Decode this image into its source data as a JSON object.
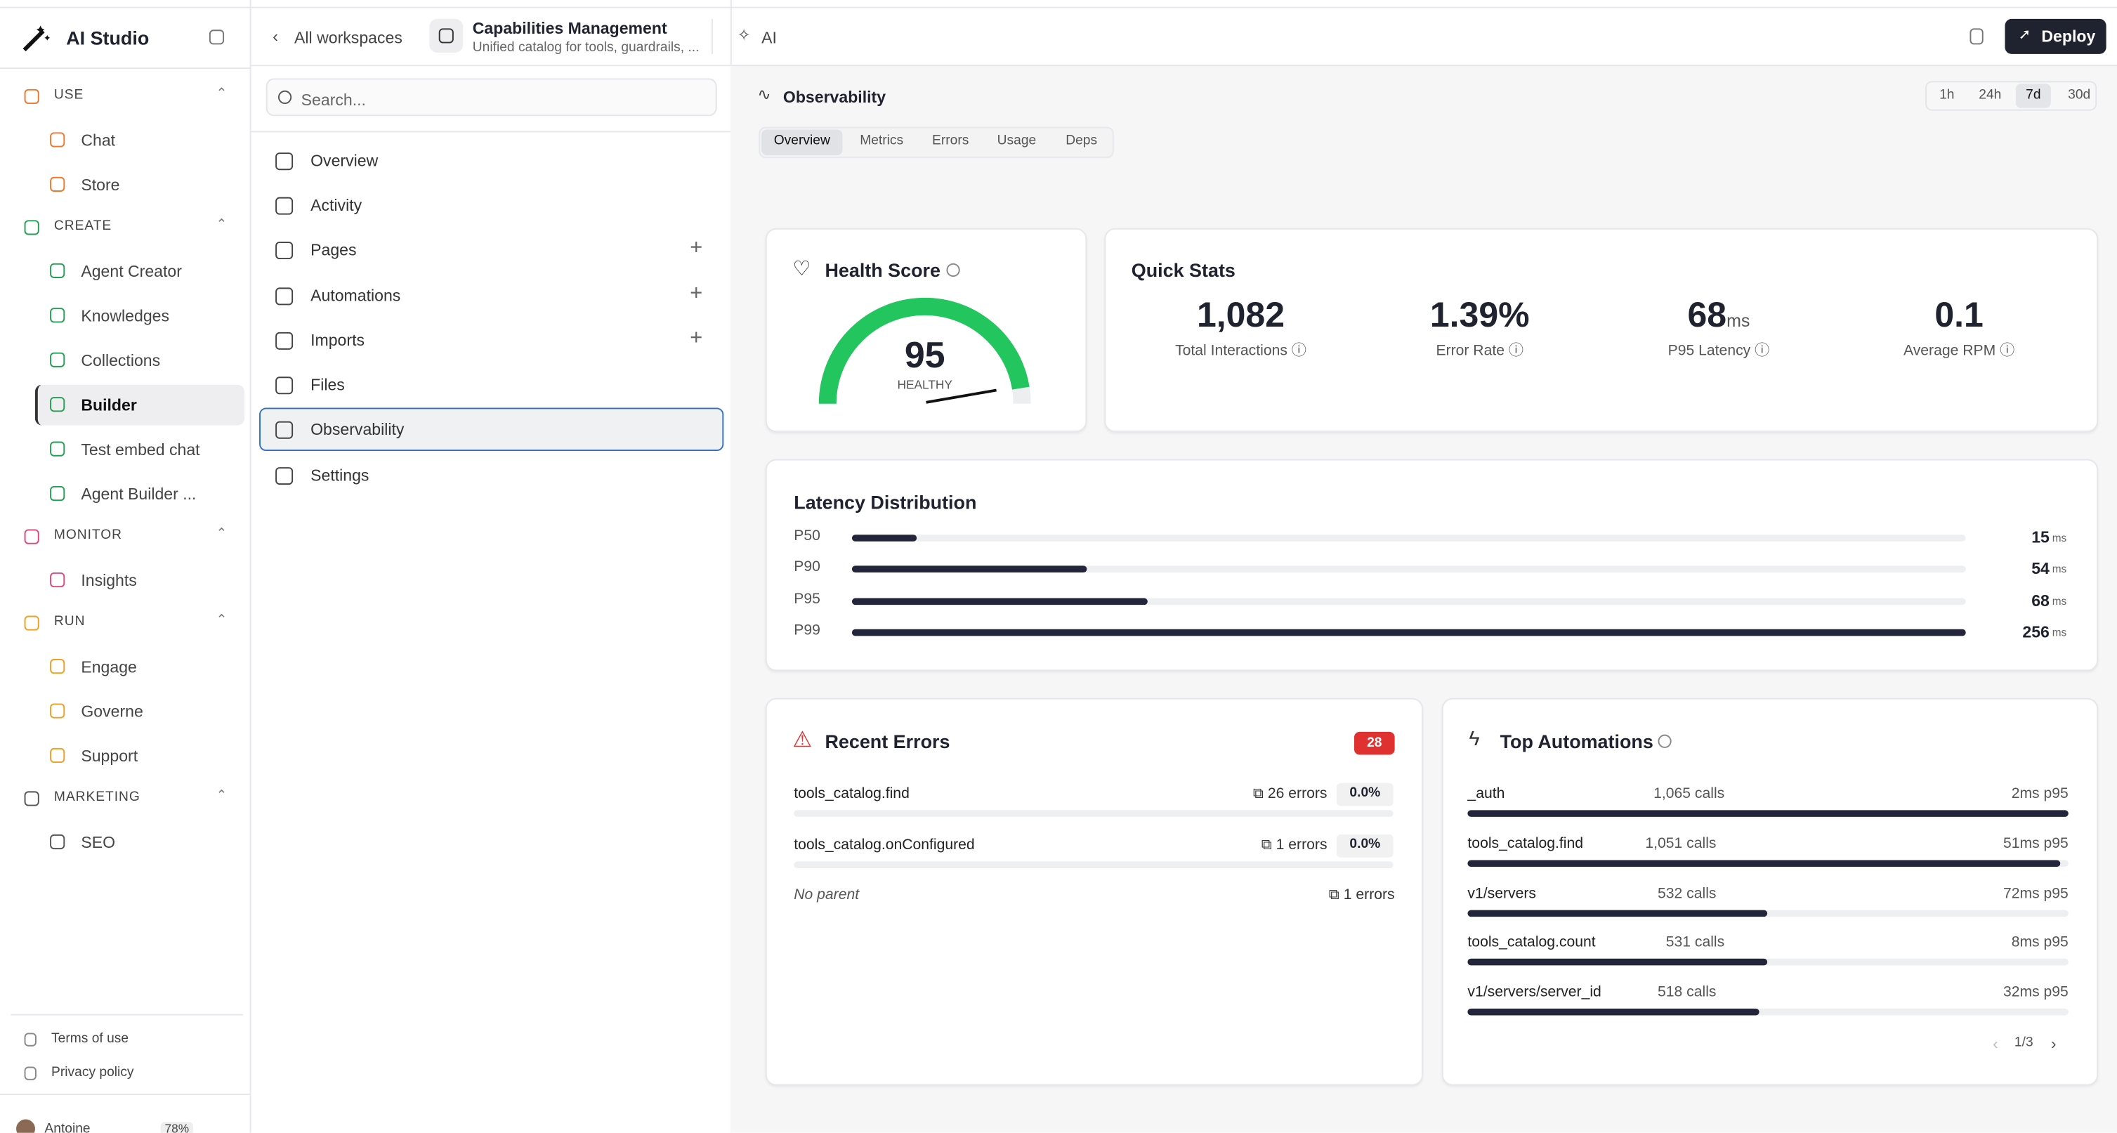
{
  "app": {
    "name": "AI Studio"
  },
  "sidebar": {
    "sections": [
      {
        "title": "USE",
        "color": "#f0772b",
        "items": [
          "Chat",
          "Store"
        ]
      },
      {
        "title": "CREATE",
        "color": "#22a052",
        "items": [
          "Agent Creator",
          "Knowledges",
          "Collections",
          "Builder",
          "Test embed chat",
          "Agent Builder ..."
        ]
      },
      {
        "title": "MONITOR",
        "color": "#e0457b",
        "items": [
          "Insights"
        ]
      },
      {
        "title": "RUN",
        "color": "#f0a020",
        "items": [
          "Engage",
          "Governe",
          "Support"
        ]
      },
      {
        "title": "MARKETING",
        "color": "#555",
        "items": [
          "SEO"
        ]
      }
    ],
    "selected": "Builder",
    "footer": [
      "Terms of use",
      "Privacy policy"
    ],
    "user": {
      "name": "Antoine",
      "usage": "78%"
    }
  },
  "topbar": {
    "back": "All workspaces",
    "title": "Capabilities Management",
    "subtitle": "Unified catalog for tools, guardrails, ...",
    "tab": "AI",
    "deploy": "Deploy"
  },
  "nav": {
    "search": "Search...",
    "items": [
      "Overview",
      "Activity",
      "Pages",
      "Automations",
      "Imports",
      "Files",
      "Observability",
      "Settings"
    ],
    "addable": [
      "Pages",
      "Automations",
      "Imports"
    ],
    "selected": "Observability"
  },
  "panel": {
    "title": "Observability",
    "ranges": [
      "1h",
      "24h",
      "7d",
      "30d"
    ],
    "selected_range": "7d",
    "tabs": [
      "Overview",
      "Metrics",
      "Errors",
      "Usage",
      "Deps"
    ],
    "selected_tab": "Overview"
  },
  "health": {
    "title": "Health Score",
    "score": 95,
    "status": "HEALTHY"
  },
  "quick_stats": {
    "title": "Quick Stats",
    "stats": [
      {
        "value": "1,082",
        "label": "Total Interactions"
      },
      {
        "value": "1.39%",
        "label": "Error Rate"
      },
      {
        "value": "68",
        "unit": "ms",
        "label": "P95 Latency"
      },
      {
        "value": "0.1",
        "label": "Average RPM"
      }
    ]
  },
  "latency": {
    "title": "Latency Distribution",
    "unit": "ms",
    "rows": [
      {
        "name": "P50",
        "value": 15
      },
      {
        "name": "P90",
        "value": 54
      },
      {
        "name": "P95",
        "value": 68
      },
      {
        "name": "P99",
        "value": 256
      }
    ]
  },
  "errors": {
    "title": "Recent Errors",
    "count": 28,
    "rows": [
      {
        "name": "tools_catalog.find",
        "errors": "26 errors",
        "rate": "0.0%"
      },
      {
        "name": "tools_catalog.onConfigured",
        "errors": "1 errors",
        "rate": "0.0%"
      },
      {
        "name": "No parent",
        "errors": "1 errors"
      }
    ]
  },
  "automations": {
    "title": "Top Automations",
    "rows": [
      {
        "name": "_auth",
        "calls": {
          "value": 1065,
          "label": "1,065 calls"
        },
        "p95": "2ms p95"
      },
      {
        "name": "tools_catalog.find",
        "calls": {
          "value": 1051,
          "label": "1,051 calls"
        },
        "p95": "51ms p95"
      },
      {
        "name": "v1/servers",
        "calls": {
          "value": 532,
          "label": "532 calls"
        },
        "p95": "72ms p95"
      },
      {
        "name": "tools_catalog.count",
        "calls": {
          "value": 531,
          "label": "531 calls"
        },
        "p95": "8ms p95"
      },
      {
        "name": "v1/servers/server_id",
        "calls": {
          "value": 518,
          "label": "518 calls"
        },
        "p95": "32ms p95"
      }
    ],
    "page": "1/3"
  }
}
